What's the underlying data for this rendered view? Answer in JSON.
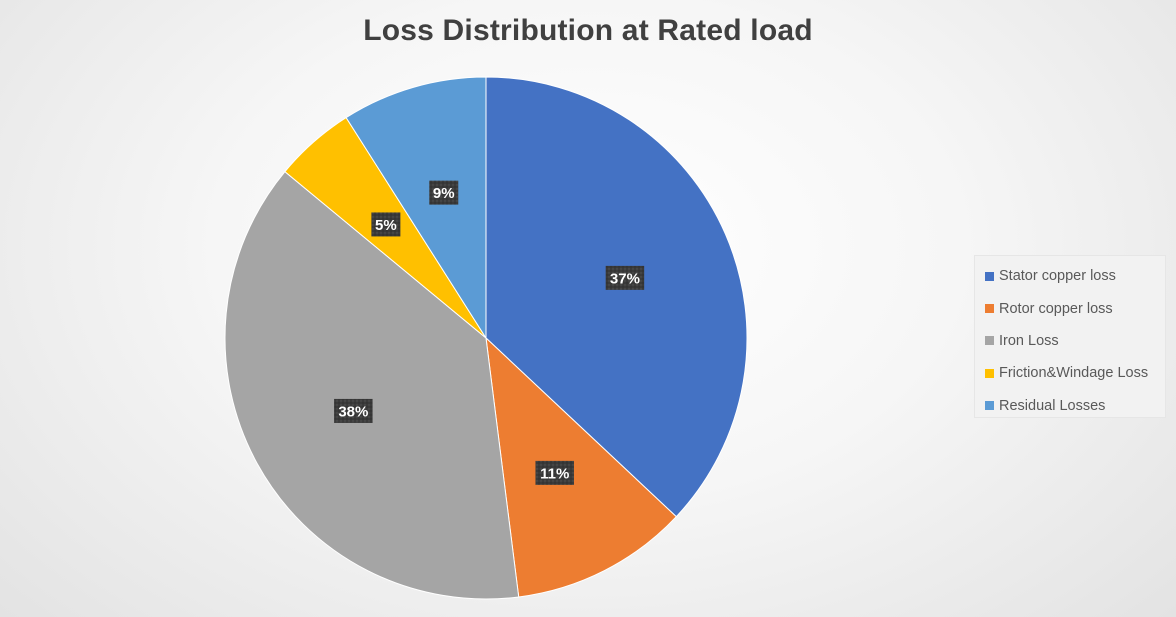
{
  "chart_data": {
    "type": "pie",
    "title": "Loss Distribution at Rated load",
    "slices": [
      {
        "label": "Stator copper loss",
        "value": 37,
        "data_label": "37%",
        "color": "#4472C4"
      },
      {
        "label": "Rotor copper loss",
        "value": 11,
        "data_label": "11%",
        "color": "#ED7D31"
      },
      {
        "label": "Iron Loss",
        "value": 38,
        "data_label": "38%",
        "color": "#A5A5A5"
      },
      {
        "label": "Friction&Windage Loss",
        "value": 5,
        "data_label": "5%",
        "color": "#FFC000"
      },
      {
        "label": "Residual Losses",
        "value": 9,
        "data_label": "9%",
        "color": "#5B9BD5"
      }
    ],
    "legend_position": "right"
  }
}
